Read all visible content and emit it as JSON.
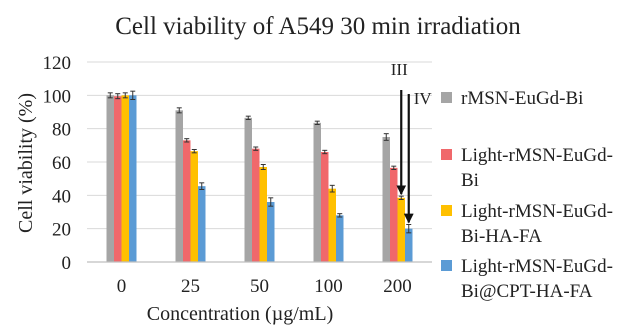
{
  "chart_data": {
    "type": "bar",
    "title": "Cell viability of A549 30 min irradiation",
    "xlabel": "Concentration (µg/mL)",
    "ylabel": "Cell viability (%)",
    "categories": [
      "0",
      "25",
      "50",
      "100",
      "200"
    ],
    "ylim": [
      0,
      120
    ],
    "yticks": [
      0,
      20,
      40,
      60,
      80,
      100,
      120
    ],
    "grid": true,
    "legend_position": "right",
    "series": [
      {
        "name": "rMSN-EuGd-Bi",
        "color": "#a5a5a5",
        "values": [
          100,
          91,
          86.5,
          83.5,
          75
        ],
        "errors": [
          1.5,
          1.5,
          1.0,
          1.0,
          2.0
        ]
      },
      {
        "name": "Light-rMSN-EuGd-Bi",
        "color": "#f0686b",
        "values": [
          99.5,
          73,
          68,
          66,
          56.5
        ],
        "errors": [
          1.5,
          1.0,
          1.0,
          1.0,
          1.0
        ]
      },
      {
        "name": "Light-rMSN-EuGd-Bi-HA-FA",
        "color": "#ffc000",
        "values": [
          100,
          66.5,
          57,
          44,
          38.5
        ],
        "errors": [
          1.5,
          1.0,
          1.5,
          2.0,
          1.0
        ]
      },
      {
        "name": "Light-rMSN-EuGd-Bi@CPT-HA-FA",
        "color": "#5b9bd5",
        "values": [
          100,
          45.5,
          36,
          28,
          20
        ],
        "errors": [
          2.5,
          2.0,
          2.5,
          1.0,
          2.5
        ]
      }
    ],
    "annotations": [
      {
        "text": "III",
        "series_index": 2,
        "category_index": 4
      },
      {
        "text": "IV",
        "series_index": 3,
        "category_index": 4
      }
    ]
  }
}
